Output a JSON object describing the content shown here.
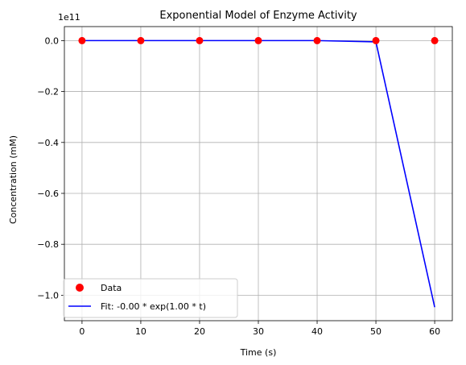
{
  "chart_data": {
    "type": "scatter",
    "title": "Exponential Model of Enzyme Activity",
    "xlabel": "Time (s)",
    "ylabel": "Concentration (mM)",
    "y_offset_label": "1e11",
    "y_scale_factor": 100000000000,
    "xlim": [
      -3,
      63
    ],
    "ylim": [
      -1.1,
      0.055
    ],
    "x_ticks": [
      0,
      10,
      20,
      30,
      40,
      50,
      60
    ],
    "x_tick_labels": [
      "0",
      "10",
      "20",
      "30",
      "40",
      "50",
      "60"
    ],
    "y_ticks": [
      0.0,
      -0.2,
      -0.4,
      -0.6,
      -0.8,
      -1.0
    ],
    "y_tick_labels": [
      "0.0",
      "−0.2",
      "−0.4",
      "−0.6",
      "−0.8",
      "−1.0"
    ],
    "grid": true,
    "legend_position": "lower-left",
    "series": [
      {
        "name": "Data",
        "kind": "scatter",
        "color": "#ff0000",
        "x": [
          0,
          10,
          20,
          30,
          40,
          50,
          60
        ],
        "y": [
          0,
          0,
          0,
          0,
          0,
          0,
          0
        ]
      },
      {
        "name": "Fit: -0.00 * exp(1.00 * t)",
        "kind": "line",
        "color": "#0000ff",
        "x": [
          0,
          10,
          20,
          30,
          40,
          50,
          60
        ],
        "y": [
          0,
          0,
          0,
          0,
          0,
          -0.0048,
          -1.047
        ]
      }
    ]
  }
}
